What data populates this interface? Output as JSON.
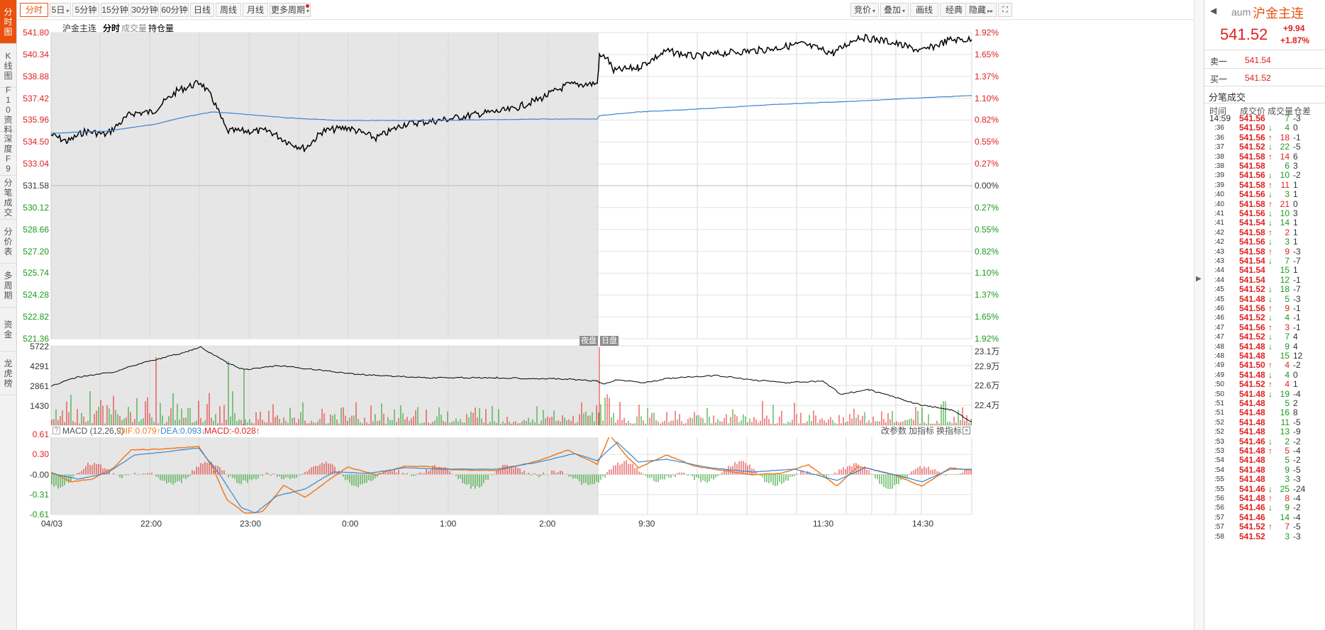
{
  "nav": [
    {
      "label": "分时图",
      "active": true
    },
    {
      "label": "K线图"
    },
    {
      "label": "F10资料"
    },
    {
      "label": "深度F9"
    },
    {
      "label": "分笔成交"
    },
    {
      "label": "分价表"
    },
    {
      "label": "多周期"
    },
    {
      "label": "资金"
    },
    {
      "label": "龙虎榜"
    }
  ],
  "toolbar": {
    "periods": [
      "分时",
      "5日",
      "5分钟",
      "15分钟",
      "30分钟",
      "60分钟",
      "日线",
      "周线",
      "月线",
      "更多周期"
    ],
    "right": [
      "竞价",
      "叠加",
      "画线",
      "经典",
      "隐藏"
    ],
    "fullscreen_icon": "fullscreen-icon"
  },
  "header": {
    "name": "沪金主连",
    "mode": "分时",
    "volume_label": "成交量",
    "oi_label": "持仓量"
  },
  "price_axis": [
    "541.80",
    "540.34",
    "538.88",
    "537.42",
    "535.96",
    "534.50",
    "533.04",
    "531.58",
    "530.12",
    "528.66",
    "527.20",
    "525.74",
    "524.28",
    "522.82",
    "521.36"
  ],
  "pct_axis": [
    "1.92%",
    "1.65%",
    "1.37%",
    "1.10%",
    "0.82%",
    "0.55%",
    "0.27%",
    "0.00%",
    "0.27%",
    "0.55%",
    "0.82%",
    "1.10%",
    "1.37%",
    "1.65%",
    "1.92%"
  ],
  "vol_axis": [
    "5722",
    "4291",
    "2861",
    "1430"
  ],
  "oi_axis": [
    "23.1万",
    "22.9万",
    "22.6万",
    "22.4万"
  ],
  "session_labels": {
    "night": "夜盘",
    "day": "日盘"
  },
  "macd": {
    "title": "MACD (12,26,9)",
    "dif": "DIF:0.079↑",
    "dea": "DEA:0.093↓",
    "macd": "MACD:-0.028↑",
    "buttons": [
      "改参数",
      "加指标",
      "换指标"
    ],
    "axis": [
      "0.61",
      "0.30",
      "-0.00",
      "-0.31",
      "-0.61"
    ]
  },
  "time_axis": [
    "04/03",
    "22:00",
    "23:00",
    "0:00",
    "1:00",
    "2:00",
    "9:30",
    "11:30",
    "14:30"
  ],
  "colors": {
    "up": "#e02020",
    "down": "#1a9a1a",
    "accent": "#e8520e",
    "avg": "#3a85d0",
    "night_bg": "#e6e6e6"
  },
  "quote": {
    "code": "aum",
    "name": "沪金主连",
    "price": "541.52",
    "change": "+9.94",
    "change_pct": "+1.87%",
    "sell1_label": "卖一",
    "sell1": "541.54",
    "buy1_label": "买一",
    "buy1": "541.52"
  },
  "ticks_title": "分笔成交",
  "ticks_header": [
    "时间",
    "成交价",
    "成交量",
    "仓差"
  ],
  "ticks": [
    {
      "t": "14:59",
      "p": "541.56",
      "d": "",
      "v": "7",
      "o": "-3"
    },
    {
      "t": ":36",
      "p": "541.50",
      "d": "down",
      "v": "4",
      "o": "0"
    },
    {
      "t": ":36",
      "p": "541.56",
      "d": "up",
      "v": "18",
      "o": "-1"
    },
    {
      "t": ":37",
      "p": "541.52",
      "d": "down",
      "v": "22",
      "o": "-5"
    },
    {
      "t": ":38",
      "p": "541.58",
      "d": "up",
      "v": "14",
      "o": "6"
    },
    {
      "t": ":38",
      "p": "541.58",
      "d": "",
      "v": "6",
      "o": "3"
    },
    {
      "t": ":39",
      "p": "541.56",
      "d": "down",
      "v": "10",
      "o": "-2"
    },
    {
      "t": ":39",
      "p": "541.58",
      "d": "up",
      "v": "11",
      "o": "1"
    },
    {
      "t": ":40",
      "p": "541.56",
      "d": "down",
      "v": "3",
      "o": "1"
    },
    {
      "t": ":40",
      "p": "541.58",
      "d": "up",
      "v": "21",
      "o": "0"
    },
    {
      "t": ":41",
      "p": "541.56",
      "d": "down",
      "v": "10",
      "o": "3"
    },
    {
      "t": ":41",
      "p": "541.54",
      "d": "down",
      "v": "14",
      "o": "1"
    },
    {
      "t": ":42",
      "p": "541.58",
      "d": "up",
      "v": "2",
      "o": "1"
    },
    {
      "t": ":42",
      "p": "541.56",
      "d": "down",
      "v": "3",
      "o": "1"
    },
    {
      "t": ":43",
      "p": "541.58",
      "d": "up",
      "v": "9",
      "o": "-3"
    },
    {
      "t": ":43",
      "p": "541.54",
      "d": "down",
      "v": "7",
      "o": "-7"
    },
    {
      "t": ":44",
      "p": "541.54",
      "d": "",
      "v": "15",
      "o": "1"
    },
    {
      "t": ":44",
      "p": "541.54",
      "d": "",
      "v": "12",
      "o": "-1"
    },
    {
      "t": ":45",
      "p": "541.52",
      "d": "down",
      "v": "18",
      "o": "-7"
    },
    {
      "t": ":45",
      "p": "541.48",
      "d": "down",
      "v": "5",
      "o": "-3"
    },
    {
      "t": ":46",
      "p": "541.56",
      "d": "up",
      "v": "9",
      "o": "-1"
    },
    {
      "t": ":46",
      "p": "541.52",
      "d": "down",
      "v": "4",
      "o": "-1"
    },
    {
      "t": ":47",
      "p": "541.56",
      "d": "up",
      "v": "3",
      "o": "-1"
    },
    {
      "t": ":47",
      "p": "541.52",
      "d": "down",
      "v": "7",
      "o": "4"
    },
    {
      "t": ":48",
      "p": "541.48",
      "d": "down",
      "v": "9",
      "o": "4"
    },
    {
      "t": ":48",
      "p": "541.48",
      "d": "",
      "v": "15",
      "o": "12"
    },
    {
      "t": ":49",
      "p": "541.50",
      "d": "up",
      "v": "4",
      "o": "-2"
    },
    {
      "t": ":49",
      "p": "541.48",
      "d": "down",
      "v": "4",
      "o": "0"
    },
    {
      "t": ":50",
      "p": "541.52",
      "d": "up",
      "v": "4",
      "o": "1"
    },
    {
      "t": ":50",
      "p": "541.48",
      "d": "down",
      "v": "19",
      "o": "-4"
    },
    {
      "t": ":51",
      "p": "541.48",
      "d": "",
      "v": "5",
      "o": "2"
    },
    {
      "t": ":51",
      "p": "541.48",
      "d": "",
      "v": "16",
      "o": "8"
    },
    {
      "t": ":52",
      "p": "541.48",
      "d": "",
      "v": "11",
      "o": "-5"
    },
    {
      "t": ":52",
      "p": "541.48",
      "d": "",
      "v": "13",
      "o": "-9"
    },
    {
      "t": ":53",
      "p": "541.46",
      "d": "down",
      "v": "2",
      "o": "-2"
    },
    {
      "t": ":53",
      "p": "541.48",
      "d": "up",
      "v": "5",
      "o": "-4"
    },
    {
      "t": ":54",
      "p": "541.48",
      "d": "",
      "v": "5",
      "o": "-2"
    },
    {
      "t": ":54",
      "p": "541.48",
      "d": "",
      "v": "9",
      "o": "-5"
    },
    {
      "t": ":55",
      "p": "541.48",
      "d": "",
      "v": "3",
      "o": "-3"
    },
    {
      "t": ":55",
      "p": "541.46",
      "d": "down",
      "v": "25",
      "o": "-24"
    },
    {
      "t": ":56",
      "p": "541.48",
      "d": "up",
      "v": "8",
      "o": "-4"
    },
    {
      "t": ":56",
      "p": "541.46",
      "d": "down",
      "v": "9",
      "o": "-2"
    },
    {
      "t": ":57",
      "p": "541.46",
      "d": "",
      "v": "14",
      "o": "-4"
    },
    {
      "t": ":57",
      "p": "541.52",
      "d": "up",
      "v": "7",
      "o": "-5"
    },
    {
      "t": ":58",
      "p": "541.52",
      "d": "",
      "v": "3",
      "o": "-3"
    }
  ]
}
